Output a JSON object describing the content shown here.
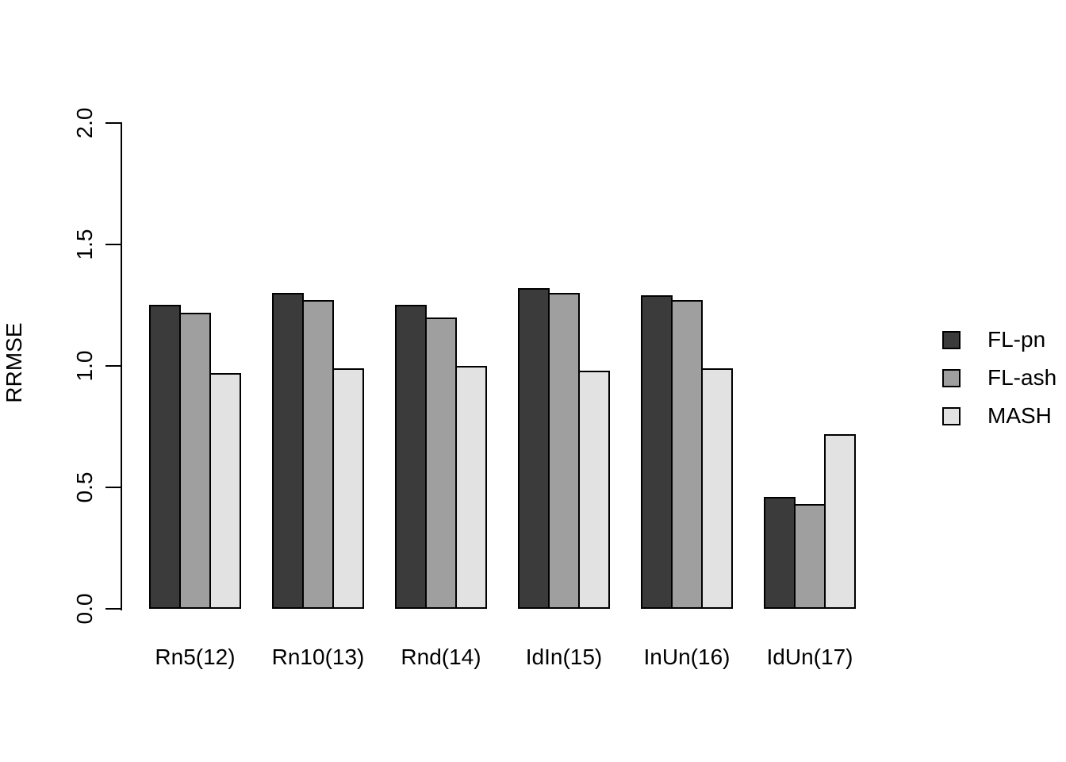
{
  "chart_data": {
    "type": "bar",
    "title": "",
    "xlabel": "",
    "ylabel": "RRMSE",
    "ylim": [
      0.0,
      2.0
    ],
    "yticks": [
      "0.0",
      "0.5",
      "1.0",
      "1.5",
      "2.0"
    ],
    "grid": false,
    "legend_position": "right",
    "categories": [
      "Rn5(12)",
      "Rn10(13)",
      "Rnd(14)",
      "IdIn(15)",
      "InUn(16)",
      "IdUn(17)"
    ],
    "series": [
      {
        "name": "FL-pn",
        "color": "#3B3B3B",
        "values": [
          1.25,
          1.3,
          1.25,
          1.32,
          1.29,
          0.46
        ]
      },
      {
        "name": "FL-ash",
        "color": "#9F9F9F",
        "values": [
          1.22,
          1.27,
          1.2,
          1.3,
          1.27,
          0.43
        ]
      },
      {
        "name": "MASH",
        "color": "#E2E2E2",
        "values": [
          0.97,
          0.99,
          1.0,
          0.98,
          0.99,
          0.72
        ]
      }
    ],
    "bar_border_color": "#000000",
    "axis_color": "#000000",
    "text_color": "#000000",
    "background_color": "#FFFFFF"
  }
}
